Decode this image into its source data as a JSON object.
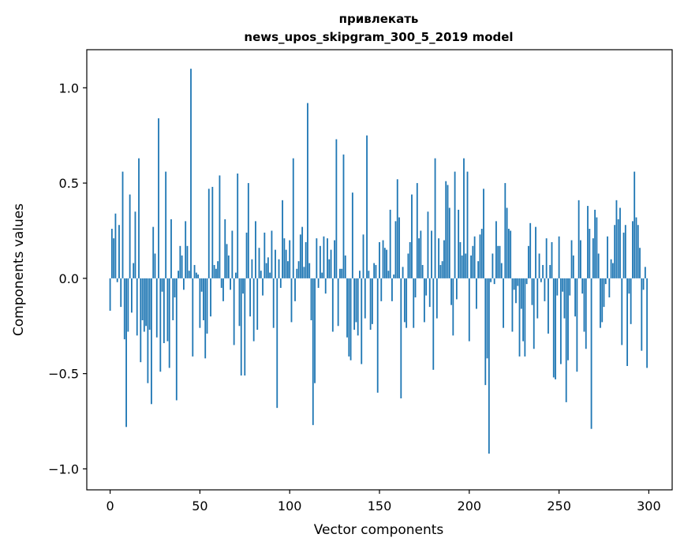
{
  "chart_data": {
    "type": "bar",
    "title_line1": "привлекать",
    "title_line2": "news_upos_skipgram_300_5_2019 model",
    "xlabel": "Vector components",
    "ylabel": "Components values",
    "xlim": [
      -13,
      313
    ],
    "ylim": [
      -1.11,
      1.2
    ],
    "xticks": [
      0,
      50,
      100,
      150,
      200,
      250,
      300
    ],
    "xtick_labels": [
      "0",
      "50",
      "100",
      "150",
      "200",
      "250",
      "300"
    ],
    "yticks": [
      1.0,
      0.5,
      0.0,
      -0.5,
      -1.0
    ],
    "ytick_labels": [
      "1.0",
      "0.5",
      "0.0",
      "−0.5",
      "−1.0"
    ],
    "bar_color": "#1f77b4",
    "values": [
      -0.17,
      0.26,
      0.21,
      0.34,
      -0.02,
      0.28,
      -0.15,
      0.56,
      -0.32,
      -0.78,
      -0.28,
      0.44,
      -0.18,
      0.08,
      0.35,
      -0.3,
      0.63,
      -0.44,
      -0.22,
      -0.28,
      -0.25,
      -0.55,
      -0.27,
      -0.66,
      0.27,
      0.13,
      -0.31,
      0.84,
      -0.49,
      -0.07,
      -0.34,
      0.56,
      -0.33,
      -0.47,
      0.31,
      -0.22,
      -0.1,
      -0.64,
      0.04,
      0.17,
      0.12,
      -0.06,
      0.3,
      0.17,
      0.04,
      1.1,
      -0.41,
      0.07,
      0.03,
      0.02,
      -0.26,
      -0.07,
      -0.22,
      -0.42,
      -0.29,
      0.47,
      -0.2,
      0.48,
      0.07,
      0.05,
      0.09,
      0.54,
      -0.05,
      -0.12,
      0.31,
      0.18,
      0.12,
      -0.06,
      0.25,
      -0.35,
      0.03,
      0.55,
      -0.25,
      -0.51,
      -0.08,
      -0.51,
      0.24,
      0.5,
      -0.2,
      0.1,
      -0.33,
      0.3,
      -0.27,
      0.16,
      0.04,
      -0.09,
      0.24,
      0.08,
      0.11,
      0.03,
      0.25,
      -0.26,
      0.15,
      -0.68,
      0.1,
      -0.05,
      0.41,
      0.21,
      0.15,
      0.09,
      0.2,
      -0.23,
      0.63,
      -0.12,
      0.05,
      0.09,
      0.23,
      0.27,
      0.06,
      0.19,
      0.92,
      0.08,
      -0.22,
      -0.77,
      -0.55,
      0.21,
      -0.05,
      0.17,
      0.03,
      0.22,
      -0.08,
      0.21,
      0.1,
      0.15,
      -0.28,
      0.2,
      0.73,
      -0.25,
      0.05,
      0.05,
      0.65,
      0.12,
      -0.31,
      -0.41,
      -0.43,
      0.45,
      -0.27,
      -0.23,
      -0.3,
      0.04,
      -0.45,
      0.23,
      -0.21,
      0.75,
      0.04,
      -0.27,
      -0.24,
      0.08,
      0.07,
      -0.6,
      0.19,
      -0.12,
      0.2,
      0.16,
      0.15,
      0.04,
      0.36,
      -0.12,
      0.02,
      0.3,
      0.52,
      0.32,
      -0.63,
      0.06,
      -0.23,
      -0.26,
      0.13,
      0.19,
      0.44,
      -0.26,
      -0.1,
      0.5,
      0.21,
      0.25,
      0.07,
      -0.23,
      -0.09,
      0.35,
      -0.15,
      0.25,
      -0.48,
      0.63,
      -0.21,
      0.21,
      0.07,
      0.09,
      0.2,
      0.51,
      0.49,
      0.37,
      -0.14,
      -0.3,
      0.56,
      -0.11,
      0.36,
      0.19,
      0.12,
      0.63,
      0.13,
      0.56,
      -0.33,
      0.12,
      0.17,
      0.22,
      -0.16,
      0.09,
      0.23,
      0.26,
      0.47,
      -0.56,
      -0.42,
      -0.92,
      -0.02,
      0.13,
      -0.03,
      0.3,
      0.17,
      0.17,
      0.08,
      -0.26,
      0.5,
      0.37,
      0.26,
      0.25,
      -0.28,
      -0.06,
      -0.13,
      -0.04,
      -0.41,
      -0.16,
      -0.33,
      -0.41,
      -0.03,
      0.17,
      0.29,
      -0.14,
      -0.37,
      0.27,
      -0.21,
      0.13,
      -0.02,
      0.07,
      -0.12,
      0.21,
      -0.29,
      0.07,
      0.19,
      -0.52,
      -0.53,
      -0.09,
      0.22,
      -0.45,
      -0.07,
      -0.21,
      -0.65,
      -0.43,
      -0.09,
      0.2,
      0.12,
      -0.2,
      -0.49,
      0.41,
      0.2,
      -0.08,
      -0.28,
      -0.37,
      0.38,
      0.26,
      -0.79,
      0.21,
      0.36,
      0.32,
      0.13,
      -0.26,
      -0.23,
      -0.15,
      -0.03,
      0.22,
      -0.1,
      0.1,
      0.08,
      0.28,
      0.41,
      0.31,
      0.37,
      -0.35,
      0.24,
      0.28,
      -0.46,
      -0.08,
      -0.24,
      0.3,
      0.56,
      0.32,
      0.28,
      0.16,
      -0.38,
      -0.06,
      0.06,
      -0.47
    ]
  }
}
